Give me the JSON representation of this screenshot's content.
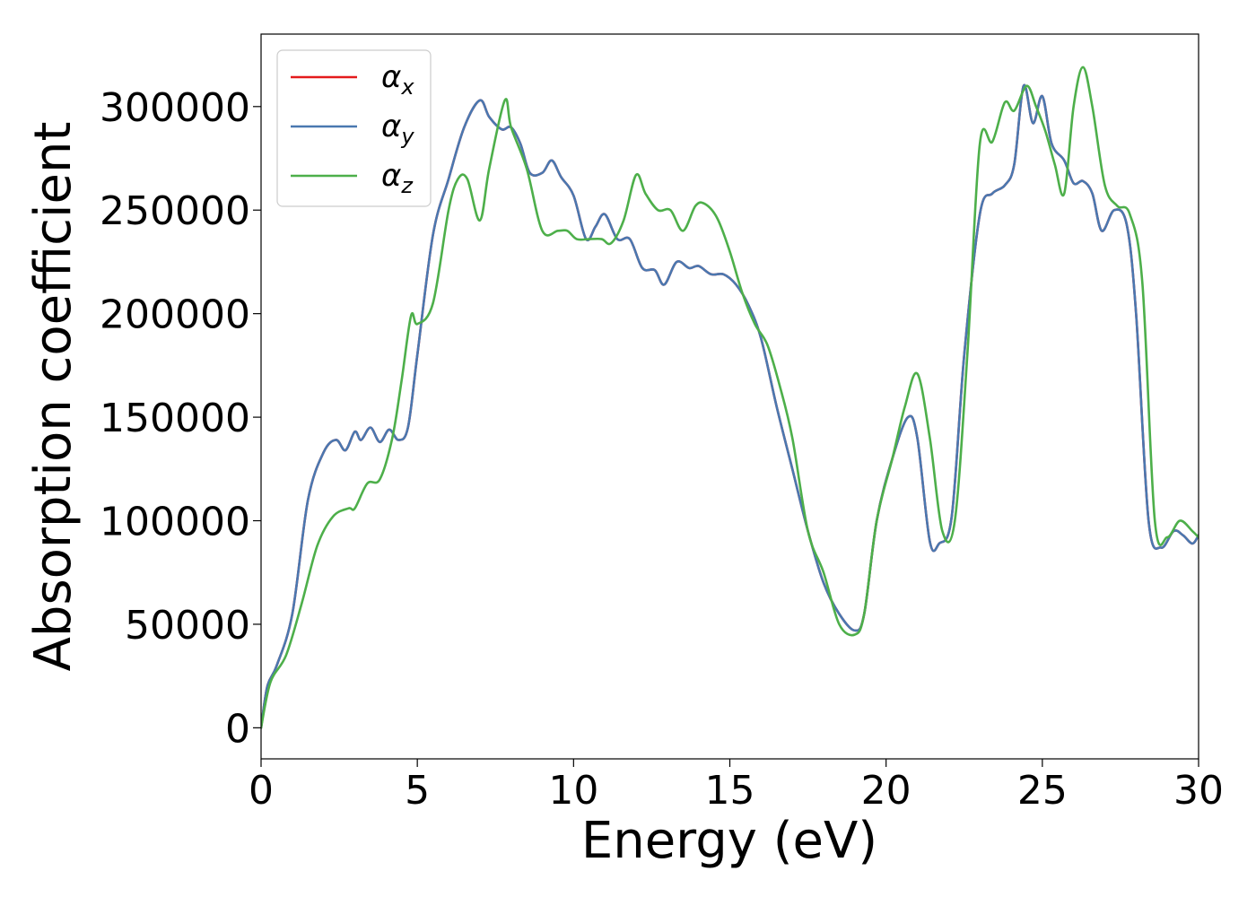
{
  "chart_data": {
    "type": "line",
    "xlabel": "Energy (eV)",
    "ylabel": "Absorption coefficient",
    "xlim": [
      0,
      30
    ],
    "ylim": [
      -15000,
      335000
    ],
    "xticks": [
      0,
      5,
      10,
      15,
      20,
      25,
      30
    ],
    "yticks": [
      0,
      50000,
      100000,
      150000,
      200000,
      250000,
      300000
    ],
    "grid": false,
    "legend": "top-left",
    "series": [
      {
        "name": "αx",
        "label_main": "α",
        "label_sub": "x",
        "color": "#e41a1c",
        "x": [
          0.0,
          0.2,
          0.5,
          1.0,
          1.5,
          2.0,
          2.4,
          2.7,
          3.0,
          3.2,
          3.5,
          3.8,
          4.1,
          4.4,
          4.7,
          5.0,
          5.5,
          6.0,
          6.5,
          7.0,
          7.3,
          7.7,
          8.0,
          8.3,
          8.6,
          9.0,
          9.3,
          9.6,
          10.0,
          10.4,
          10.7,
          11.0,
          11.4,
          11.8,
          12.2,
          12.6,
          12.9,
          13.3,
          13.7,
          14.0,
          14.4,
          14.8,
          15.2,
          15.6,
          16.0,
          16.5,
          17.0,
          17.5,
          18.0,
          18.5,
          19.0,
          19.3,
          19.7,
          20.2,
          20.7,
          21.0,
          21.4,
          21.7,
          22.1,
          22.5,
          23.0,
          23.4,
          23.8,
          24.1,
          24.4,
          24.7,
          25.0,
          25.3,
          25.7,
          26.0,
          26.3,
          26.6,
          26.9,
          27.3,
          27.7,
          28.0,
          28.4,
          28.8,
          29.2,
          29.5,
          29.8,
          30.0
        ],
        "y": [
          0,
          20000,
          30000,
          55000,
          110000,
          133000,
          139000,
          134000,
          143000,
          139000,
          145000,
          138000,
          144000,
          139000,
          145000,
          180000,
          238000,
          265000,
          290000,
          303000,
          295000,
          289000,
          290000,
          282000,
          268000,
          268000,
          274000,
          266000,
          257000,
          236000,
          242000,
          248000,
          236000,
          236000,
          222000,
          221000,
          214000,
          225000,
          222000,
          223000,
          219000,
          219000,
          214000,
          204000,
          188000,
          155000,
          125000,
          95000,
          70000,
          55000,
          47000,
          55000,
          100000,
          130000,
          150000,
          140000,
          90000,
          89000,
          102000,
          180000,
          248000,
          258000,
          262000,
          272000,
          310000,
          292000,
          305000,
          282000,
          274000,
          263000,
          264000,
          258000,
          240000,
          250000,
          243000,
          200000,
          100000,
          87000,
          95000,
          93000,
          89000,
          93000
        ]
      },
      {
        "name": "αy",
        "label_main": "α",
        "label_sub": "y",
        "color": "#4a78b0",
        "x": [
          0.0,
          0.2,
          0.5,
          1.0,
          1.5,
          2.0,
          2.4,
          2.7,
          3.0,
          3.2,
          3.5,
          3.8,
          4.1,
          4.4,
          4.7,
          5.0,
          5.5,
          6.0,
          6.5,
          7.0,
          7.3,
          7.7,
          8.0,
          8.3,
          8.6,
          9.0,
          9.3,
          9.6,
          10.0,
          10.4,
          10.7,
          11.0,
          11.4,
          11.8,
          12.2,
          12.6,
          12.9,
          13.3,
          13.7,
          14.0,
          14.4,
          14.8,
          15.2,
          15.6,
          16.0,
          16.5,
          17.0,
          17.5,
          18.0,
          18.5,
          19.0,
          19.3,
          19.7,
          20.2,
          20.7,
          21.0,
          21.4,
          21.7,
          22.1,
          22.5,
          23.0,
          23.4,
          23.8,
          24.1,
          24.4,
          24.7,
          25.0,
          25.3,
          25.7,
          26.0,
          26.3,
          26.6,
          26.9,
          27.3,
          27.7,
          28.0,
          28.4,
          28.8,
          29.2,
          29.5,
          29.8,
          30.0
        ],
        "y": [
          0,
          20000,
          30000,
          55000,
          110000,
          133000,
          139000,
          134000,
          143000,
          139000,
          145000,
          138000,
          144000,
          139000,
          145000,
          180000,
          238000,
          265000,
          290000,
          303000,
          295000,
          289000,
          290000,
          282000,
          268000,
          268000,
          274000,
          266000,
          257000,
          236000,
          242000,
          248000,
          236000,
          236000,
          222000,
          221000,
          214000,
          225000,
          222000,
          223000,
          219000,
          219000,
          214000,
          204000,
          188000,
          155000,
          125000,
          95000,
          70000,
          55000,
          47000,
          55000,
          100000,
          130000,
          150000,
          140000,
          90000,
          89000,
          102000,
          180000,
          248000,
          258000,
          262000,
          272000,
          310000,
          292000,
          305000,
          282000,
          274000,
          263000,
          264000,
          258000,
          240000,
          250000,
          243000,
          200000,
          100000,
          87000,
          95000,
          93000,
          89000,
          93000
        ]
      },
      {
        "name": "αz",
        "label_main": "α",
        "label_sub": "z",
        "color": "#4daf4a",
        "x": [
          0.0,
          0.3,
          0.8,
          1.3,
          1.8,
          2.3,
          2.8,
          3.0,
          3.4,
          3.8,
          4.2,
          4.5,
          4.8,
          5.0,
          5.5,
          6.0,
          6.3,
          6.6,
          7.0,
          7.3,
          7.8,
          8.0,
          8.5,
          9.0,
          9.5,
          9.8,
          10.1,
          10.5,
          10.9,
          11.2,
          11.6,
          12.0,
          12.3,
          12.7,
          13.1,
          13.5,
          13.9,
          14.2,
          14.6,
          15.0,
          15.4,
          15.8,
          16.2,
          16.6,
          17.0,
          17.5,
          18.0,
          18.5,
          19.0,
          19.3,
          19.7,
          20.2,
          20.6,
          21.0,
          21.4,
          21.8,
          22.2,
          22.6,
          23.0,
          23.4,
          23.8,
          24.1,
          24.5,
          24.8,
          25.1,
          25.4,
          25.7,
          26.0,
          26.3,
          26.6,
          27.0,
          27.4,
          27.8,
          28.2,
          28.6,
          29.0,
          29.4,
          29.8,
          30.0
        ],
        "y": [
          0,
          22000,
          35000,
          60000,
          88000,
          102000,
          106000,
          106000,
          118000,
          120000,
          140000,
          168000,
          199000,
          195000,
          205000,
          250000,
          265000,
          265000,
          245000,
          270000,
          303000,
          290000,
          270000,
          240000,
          240000,
          240000,
          236000,
          236000,
          236000,
          234000,
          245000,
          267000,
          258000,
          250000,
          250000,
          240000,
          252000,
          253000,
          246000,
          230000,
          210000,
          195000,
          185000,
          165000,
          140000,
          95000,
          75000,
          50000,
          45000,
          55000,
          100000,
          130000,
          155000,
          171000,
          140000,
          95000,
          100000,
          180000,
          282000,
          283000,
          302000,
          298000,
          310000,
          300000,
          288000,
          272000,
          258000,
          300000,
          319000,
          300000,
          262000,
          252000,
          248000,
          215000,
          100000,
          92000,
          100000,
          95000,
          92000
        ]
      }
    ]
  }
}
